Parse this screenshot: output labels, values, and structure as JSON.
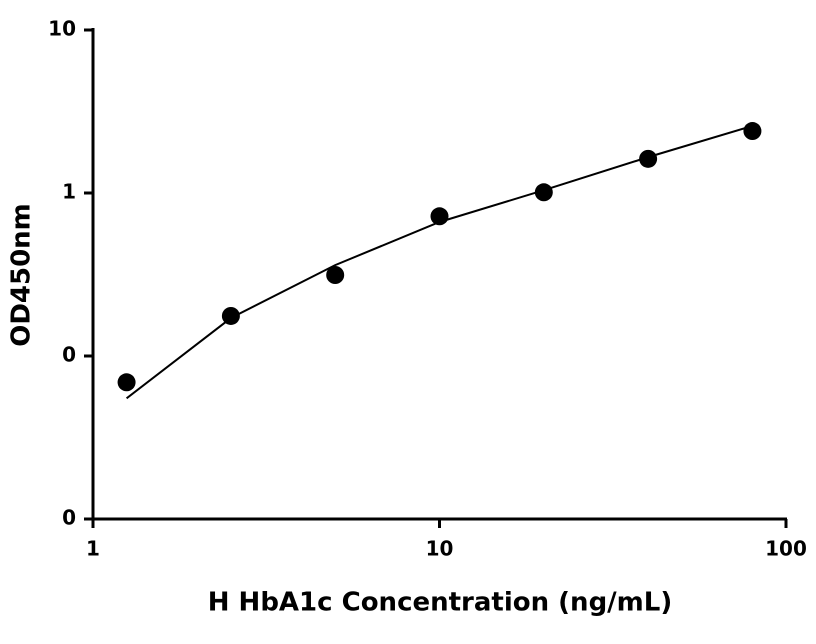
{
  "chart_data": {
    "type": "scatter",
    "x_label": "H HbA1c Concentration (ng/mL)",
    "y_label": "OD450nm",
    "x": [
      1.25,
      2.5,
      5,
      10,
      20,
      40,
      80
    ],
    "series": [
      {
        "color": "#000000",
        "values": [
          0.069,
          0.176,
          0.314,
          0.72,
          1.01,
          1.62,
          2.4
        ]
      }
    ],
    "fit": {
      "color": "#000000",
      "x": [
        1.25,
        2.5,
        5,
        10,
        20,
        40,
        80
      ],
      "values": [
        0.055,
        0.171,
        0.361,
        0.664,
        1.04,
        1.66,
        2.58
      ]
    },
    "xscale": "log",
    "yscale": "log",
    "xlim": [
      1,
      100
    ],
    "xticks": [
      1,
      10,
      100
    ],
    "ylim": [
      0.01,
      10
    ],
    "yticks": [
      {
        "value": 0.01,
        "label": "0"
      },
      {
        "value": 0.1,
        "label": "0"
      },
      1,
      10
    ]
  }
}
